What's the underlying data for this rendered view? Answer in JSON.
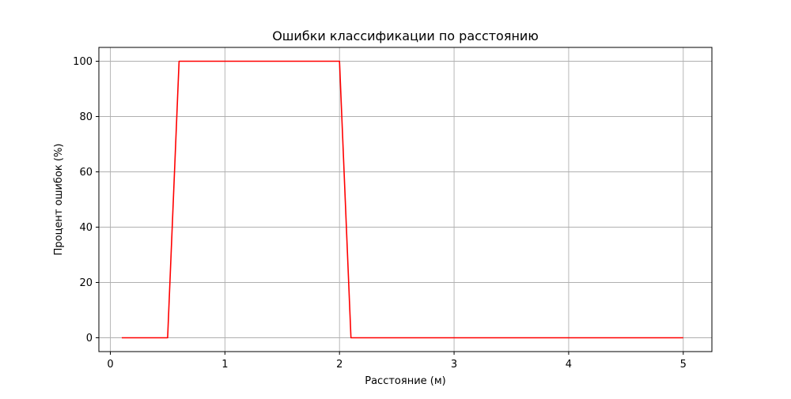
{
  "chart_data": {
    "type": "line",
    "title": "Ошибки классификации по расстоянию",
    "xlabel": "Расстояние (м)",
    "ylabel": "Процент ошибок (%)",
    "xlim": [
      -0.1,
      5.25
    ],
    "ylim": [
      -5,
      105
    ],
    "xticks": [
      0,
      1,
      2,
      3,
      4,
      5
    ],
    "yticks": [
      0,
      20,
      40,
      60,
      80,
      100
    ],
    "xtick_labels": [
      "0",
      "1",
      "2",
      "3",
      "4",
      "5"
    ],
    "ytick_labels": [
      "0",
      "20",
      "40",
      "60",
      "80",
      "100"
    ],
    "grid": true,
    "legend": "none",
    "series": [
      {
        "color": "#ff0000",
        "x": [
          0.1,
          0.2,
          0.3,
          0.4,
          0.5,
          0.6,
          0.7,
          0.8,
          0.9,
          1.0,
          1.1,
          1.2,
          1.3,
          1.4,
          1.5,
          1.6,
          1.7,
          1.8,
          1.9,
          2.0,
          2.1,
          2.2,
          2.3,
          2.4,
          2.5,
          2.6,
          2.7,
          2.8,
          2.9,
          3.0,
          3.1,
          3.2,
          3.3,
          3.4,
          3.5,
          3.6,
          3.7,
          3.8,
          3.9,
          4.0,
          4.1,
          4.2,
          4.3,
          4.4,
          4.5,
          4.6,
          4.7,
          4.8,
          4.9,
          5.0
        ],
        "y": [
          0,
          0,
          0,
          0,
          0,
          100,
          100,
          100,
          100,
          100,
          100,
          100,
          100,
          100,
          100,
          100,
          100,
          100,
          100,
          100,
          0,
          0,
          0,
          0,
          0,
          0,
          0,
          0,
          0,
          0,
          0,
          0,
          0,
          0,
          0,
          0,
          0,
          0,
          0,
          0,
          0,
          0,
          0,
          0,
          0,
          0,
          0,
          0,
          0,
          0
        ]
      }
    ]
  }
}
